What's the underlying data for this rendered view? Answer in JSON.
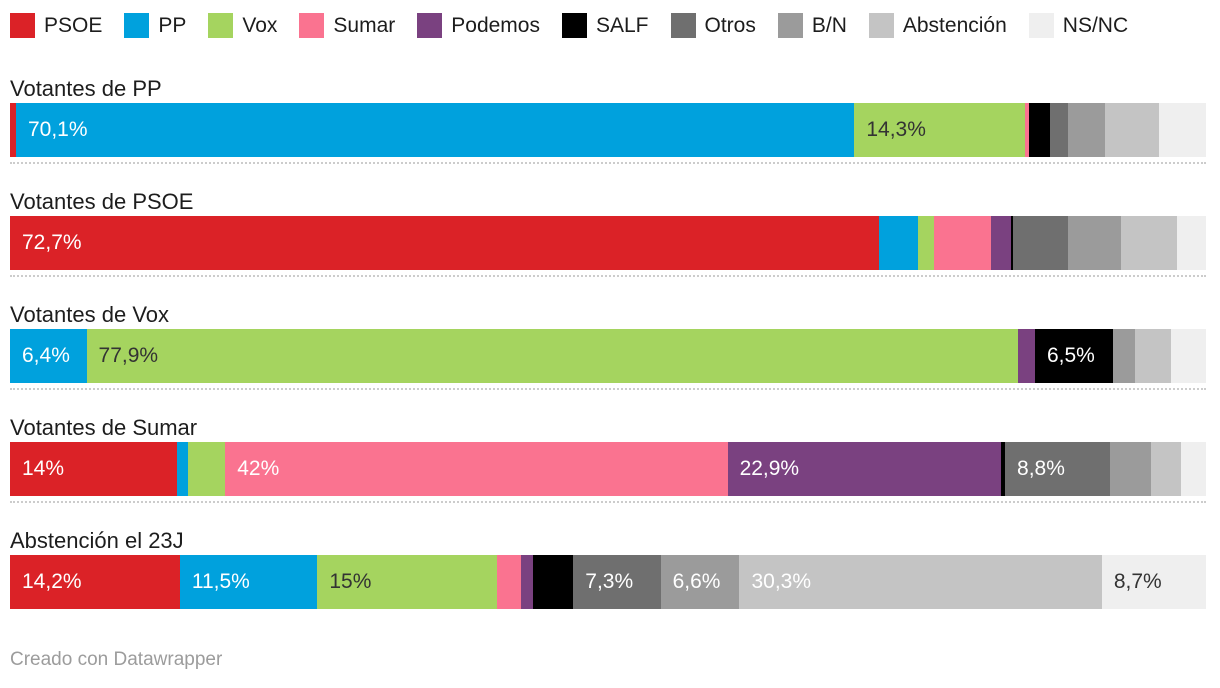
{
  "chart_data": {
    "type": "bar",
    "orientation": "horizontal",
    "stacked": true,
    "unit": "percent",
    "xlim": [
      0,
      100
    ],
    "grid": false,
    "legend_position": "top",
    "categories": [
      "PSOE",
      "PP",
      "Vox",
      "Sumar",
      "Podemos",
      "SALF",
      "Otros",
      "B/N",
      "Abstención",
      "NS/NC"
    ],
    "colors": [
      "#db2227",
      "#00a1dd",
      "#a5d45f",
      "#fa7390",
      "#7a4180",
      "#000000",
      "#6f6f6f",
      "#9b9b9b",
      "#c4c4c4",
      "#efefef"
    ],
    "dark_label_categories": [
      "Vox",
      "NS/NC"
    ],
    "label_colors": {
      "dark": "#333333",
      "light": "#ffffff"
    },
    "rows": [
      {
        "label": "Votantes de PP",
        "values": [
          0.5,
          70.1,
          14.3,
          0.3,
          0,
          1.8,
          1.5,
          3.1,
          4.5,
          3.9
        ],
        "labels": [
          "",
          "70,1%",
          "14,3%",
          "",
          "",
          "",
          "",
          "",
          "",
          ""
        ]
      },
      {
        "label": "Votantes de PSOE",
        "values": [
          72.7,
          3.2,
          1.4,
          4.7,
          1.7,
          0.2,
          4.6,
          4.4,
          4.7,
          2.4
        ],
        "labels": [
          "72,7%",
          "",
          "",
          "",
          "",
          "",
          "",
          "",
          "",
          ""
        ]
      },
      {
        "label": "Votantes de Vox",
        "values": [
          0,
          6.4,
          77.9,
          0,
          1.4,
          6.5,
          0,
          1.9,
          3.0,
          2.9
        ],
        "labels": [
          "",
          "6,4%",
          "77,9%",
          "",
          "",
          "6,5%",
          "",
          "",
          "",
          ""
        ]
      },
      {
        "label": "Votantes de Sumar",
        "values": [
          14,
          0.9,
          3.1,
          42,
          22.9,
          0.3,
          8.8,
          3.4,
          2.5,
          2.1
        ],
        "labels": [
          "14%",
          "",
          "",
          "42%",
          "22,9%",
          "",
          "8,8%",
          "",
          "",
          ""
        ]
      },
      {
        "label": "Abstención el 23J",
        "values": [
          14.2,
          11.5,
          15,
          2.0,
          1.0,
          3.4,
          7.3,
          6.6,
          30.3,
          8.7
        ],
        "labels": [
          "14,2%",
          "11,5%",
          "15%",
          "",
          "",
          "",
          "7,3%",
          "6,6%",
          "30,3%",
          "8,7%"
        ]
      }
    ]
  },
  "footer": {
    "attribution": "Creado con Datawrapper"
  }
}
